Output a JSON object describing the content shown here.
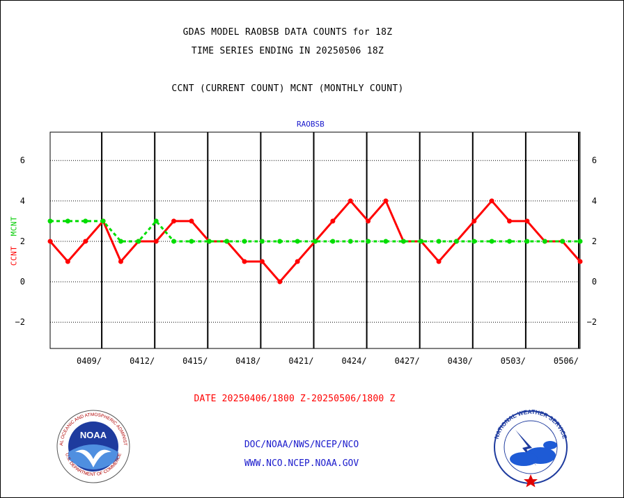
{
  "header": {
    "line1": "GDAS MODEL RAOBSB DATA COUNTS for 18Z",
    "line2": "TIME SERIES ENDING IN 20250506 18Z",
    "line3": "CCNT (CURRENT COUNT) MCNT (MONTHLY COUNT)"
  },
  "panel_label": "RAOBSB",
  "ylabel_ccnt": "CCNT",
  "ylabel_mcnt": "MCNT",
  "date_range": "DATE 20250406/1800 Z-20250506/1800 Z",
  "footer": {
    "line1": "DOC/NOAA/NWS/NCEP/NCO",
    "line2": "WWW.NCO.NCEP.NOAA.GOV"
  },
  "logos": {
    "noaa": {
      "center_text": "NOAA",
      "ring_text": "NATIONAL OCEANIC AND ATMOSPHERIC ADMINISTRATION",
      "ring_text_bottom": "U.S. DEPARTMENT OF COMMERCE"
    },
    "nws": {
      "ring_text": "NATIONAL WEATHER SERVICE"
    }
  },
  "colors": {
    "ccnt": "#ff0000",
    "mcnt": "#00dd00",
    "grid": "#000000",
    "text_blue": "#1a1acc"
  },
  "chart_data": {
    "type": "line",
    "title": "GDAS MODEL RAOBSB DATA COUNTS for 18Z",
    "x": [
      "0406",
      "0407",
      "0408",
      "0409",
      "0410",
      "0411",
      "0412",
      "0413",
      "0414",
      "0415",
      "0416",
      "0417",
      "0418",
      "0419",
      "0420",
      "0421",
      "0422",
      "0423",
      "0424",
      "0425",
      "0426",
      "0427",
      "0428",
      "0429",
      "0430",
      "0501",
      "0502",
      "0503",
      "0504",
      "0505",
      "0506"
    ],
    "series": [
      {
        "name": "CCNT",
        "color": "#ff0000",
        "style": "solid",
        "values": [
          2,
          1,
          2,
          3,
          1,
          2,
          2,
          3,
          3,
          2,
          2,
          1,
          1,
          0,
          1,
          2,
          3,
          4,
          3,
          4,
          2,
          2,
          1,
          2,
          3,
          4,
          3,
          3,
          2,
          2,
          1
        ]
      },
      {
        "name": "MCNT",
        "color": "#00dd00",
        "style": "dashed",
        "values": [
          3,
          3,
          3,
          3,
          2,
          2,
          3,
          2,
          2,
          2,
          2,
          2,
          2,
          2,
          2,
          2,
          2,
          2,
          2,
          2,
          2,
          2,
          2,
          2,
          2,
          2,
          2,
          2,
          2,
          2,
          2
        ]
      }
    ],
    "x_tick_labels": [
      "0409/",
      "0412/",
      "0415/",
      "0418/",
      "0421/",
      "0424/",
      "0427/",
      "0430/",
      "0503/",
      "0506/"
    ],
    "y_ticks": [
      -2,
      0,
      2,
      4,
      6
    ],
    "ylim": [
      -3.3,
      7.4
    ],
    "grid": true
  }
}
